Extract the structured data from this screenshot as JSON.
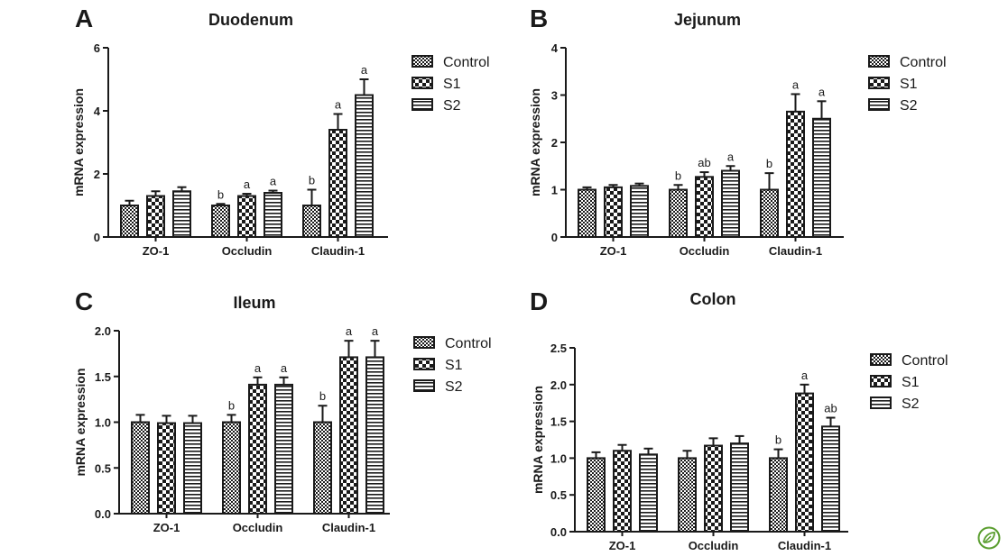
{
  "colors": {
    "ink": "#1a1a1a",
    "bar_fill": "#ffffff",
    "logo": "#5a9e2f"
  },
  "icons": {
    "logo": "leaf-logo-icon"
  },
  "chart_data": [
    {
      "type": "bar",
      "panel_letter": "A",
      "title": "Duodenum",
      "xlabel": "",
      "ylabel": "mRNA expression",
      "categories": [
        "ZO-1",
        "Occludin",
        "Claudin-1"
      ],
      "ylim": [
        0,
        6
      ],
      "yticks": [
        0,
        2,
        4,
        6
      ],
      "tick_labels": [
        "0",
        "2",
        "4",
        "6"
      ],
      "legend_position": "top-right",
      "grid": false,
      "series": [
        {
          "name": "Control",
          "pattern": "small-checker",
          "values": [
            1.0,
            1.0,
            1.0
          ],
          "errors": [
            0.15,
            0.05,
            0.5
          ],
          "letters": [
            "",
            "b",
            "b"
          ]
        },
        {
          "name": "S1",
          "pattern": "large-checker",
          "values": [
            1.3,
            1.3,
            3.4
          ],
          "errors": [
            0.15,
            0.07,
            0.5
          ],
          "letters": [
            "",
            "a",
            "a"
          ]
        },
        {
          "name": "S2",
          "pattern": "horizontal-stripes",
          "values": [
            1.45,
            1.4,
            4.5
          ],
          "errors": [
            0.13,
            0.07,
            0.5
          ],
          "letters": [
            "",
            "a",
            "a"
          ]
        }
      ]
    },
    {
      "type": "bar",
      "panel_letter": "B",
      "title": "Jejunum",
      "xlabel": "",
      "ylabel": "mRNA expression",
      "categories": [
        "ZO-1",
        "Occludin",
        "Claudin-1"
      ],
      "ylim": [
        0,
        4
      ],
      "yticks": [
        0,
        1,
        2,
        3,
        4
      ],
      "tick_labels": [
        "0",
        "1",
        "2",
        "3",
        "4"
      ],
      "legend_position": "top-right",
      "grid": false,
      "series": [
        {
          "name": "Control",
          "pattern": "small-checker",
          "values": [
            1.0,
            1.0,
            1.0
          ],
          "errors": [
            0.05,
            0.1,
            0.35
          ],
          "letters": [
            "",
            "b",
            "b"
          ]
        },
        {
          "name": "S1",
          "pattern": "large-checker",
          "values": [
            1.05,
            1.27,
            2.65
          ],
          "errors": [
            0.05,
            0.1,
            0.37
          ],
          "letters": [
            "",
            "ab",
            "a"
          ]
        },
        {
          "name": "S2",
          "pattern": "horizontal-stripes",
          "values": [
            1.08,
            1.4,
            2.5
          ],
          "errors": [
            0.05,
            0.1,
            0.37
          ],
          "letters": [
            "",
            "a",
            "a"
          ]
        }
      ]
    },
    {
      "type": "bar",
      "panel_letter": "C",
      "title": "Ileum",
      "xlabel": "",
      "ylabel": "mRNA expression",
      "categories": [
        "ZO-1",
        "Occludin",
        "Claudin-1"
      ],
      "ylim": [
        0,
        2
      ],
      "yticks": [
        0,
        0.5,
        1,
        1.5,
        2
      ],
      "tick_labels": [
        "0.0",
        "0.5",
        "1.0",
        "1.5",
        "2.0"
      ],
      "legend_position": "top-right",
      "grid": false,
      "series": [
        {
          "name": "Control",
          "pattern": "small-checker",
          "values": [
            1.0,
            1.0,
            1.0
          ],
          "errors": [
            0.08,
            0.08,
            0.18
          ],
          "letters": [
            "",
            "b",
            "b"
          ]
        },
        {
          "name": "S1",
          "pattern": "large-checker",
          "values": [
            0.99,
            1.41,
            1.71
          ],
          "errors": [
            0.08,
            0.08,
            0.18
          ],
          "letters": [
            "",
            "a",
            "a"
          ]
        },
        {
          "name": "S2",
          "pattern": "horizontal-stripes",
          "values": [
            0.99,
            1.41,
            1.71
          ],
          "errors": [
            0.08,
            0.08,
            0.18
          ],
          "letters": [
            "",
            "a",
            "a"
          ]
        }
      ]
    },
    {
      "type": "bar",
      "panel_letter": "D",
      "title": "Colon",
      "xlabel": "",
      "ylabel": "mRNA expression",
      "categories": [
        "ZO-1",
        "Occludin",
        "Claudin-1"
      ],
      "ylim": [
        0,
        2.5
      ],
      "yticks": [
        0,
        0.5,
        1,
        1.5,
        2,
        2.5
      ],
      "tick_labels": [
        "0.0",
        "0.5",
        "1.0",
        "1.5",
        "2.0",
        "2.5"
      ],
      "legend_position": "top-right",
      "grid": false,
      "series": [
        {
          "name": "Control",
          "pattern": "small-checker",
          "values": [
            1.0,
            1.0,
            1.0
          ],
          "errors": [
            0.08,
            0.1,
            0.12
          ],
          "letters": [
            "",
            "",
            "b"
          ]
        },
        {
          "name": "S1",
          "pattern": "large-checker",
          "values": [
            1.1,
            1.17,
            1.88
          ],
          "errors": [
            0.08,
            0.1,
            0.12
          ],
          "letters": [
            "",
            "",
            "a"
          ]
        },
        {
          "name": "S2",
          "pattern": "horizontal-stripes",
          "values": [
            1.05,
            1.2,
            1.43
          ],
          "errors": [
            0.08,
            0.1,
            0.12
          ],
          "letters": [
            "",
            "",
            "ab"
          ]
        }
      ]
    }
  ]
}
